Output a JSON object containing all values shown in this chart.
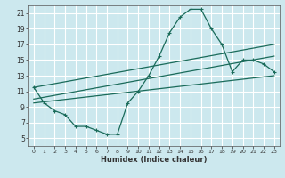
{
  "xlabel": "Humidex (Indice chaleur)",
  "bg_color": "#cce8ee",
  "grid_color": "#ffffff",
  "line_color": "#1a6b5a",
  "xlim": [
    -0.5,
    23.5
  ],
  "ylim": [
    4,
    22
  ],
  "yticks": [
    5,
    7,
    9,
    11,
    13,
    15,
    17,
    19,
    21
  ],
  "xticks": [
    0,
    1,
    2,
    3,
    4,
    5,
    6,
    7,
    8,
    9,
    10,
    11,
    12,
    13,
    14,
    15,
    16,
    17,
    18,
    19,
    20,
    21,
    22,
    23
  ],
  "main_curve_x": [
    0,
    1,
    2,
    3,
    4,
    5,
    6,
    7,
    8,
    9,
    10,
    11,
    12,
    13,
    14,
    15,
    16,
    17,
    18,
    19,
    20,
    21,
    22,
    23
  ],
  "main_curve_y": [
    11.5,
    9.5,
    8.5,
    8.0,
    6.5,
    6.5,
    6.0,
    5.5,
    5.5,
    9.5,
    11.0,
    13.0,
    15.5,
    18.5,
    20.5,
    21.5,
    21.5,
    19.0,
    17.0,
    13.5,
    15.0,
    15.0,
    14.5,
    13.5
  ],
  "line1_x": [
    0,
    23
  ],
  "line1_y": [
    11.5,
    17.0
  ],
  "line2_x": [
    0,
    23
  ],
  "line2_y": [
    10.0,
    15.5
  ],
  "line3_x": [
    0,
    23
  ],
  "line3_y": [
    9.5,
    13.0
  ]
}
